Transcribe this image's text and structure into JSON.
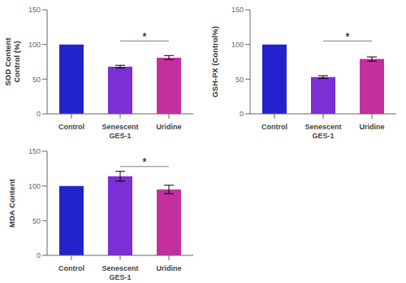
{
  "chart_data": [
    {
      "type": "bar",
      "ylabel": "SOD Content\nControl (%)",
      "categories": [
        "Control",
        "Senescent\nGES-1",
        "Uridine"
      ],
      "values": [
        100,
        68,
        81
      ],
      "errors": [
        0,
        2,
        3
      ],
      "colors": [
        "#2323CC",
        "#7B2FD4",
        "#C42FA0"
      ],
      "ylim": [
        0,
        150
      ],
      "yticks": [
        0,
        50,
        100,
        150
      ],
      "grid": false,
      "annotations": [
        {
          "text": "*",
          "between": [
            "Senescent\nGES-1",
            "Uridine"
          ],
          "y": 105,
          "text_y": 106
        }
      ]
    },
    {
      "type": "bar",
      "ylabel": "GSH-PX (Control%)",
      "categories": [
        "Control",
        "Senescent\nGES-1",
        "Uridine"
      ],
      "values": [
        100,
        53,
        79
      ],
      "errors": [
        0,
        2,
        3
      ],
      "colors": [
        "#2323CC",
        "#7B2FD4",
        "#C42FA0"
      ],
      "ylim": [
        0,
        150
      ],
      "yticks": [
        0,
        50,
        100,
        150
      ],
      "grid": false,
      "annotations": [
        {
          "text": "*",
          "between": [
            "Senescent\nGES-1",
            "Uridine"
          ],
          "y": 105,
          "text_y": 106
        }
      ]
    },
    {
      "type": "bar",
      "ylabel": "MDA Content",
      "categories": [
        "Control",
        "Senescent\nGES-1",
        "Uridine"
      ],
      "values": [
        100,
        114,
        95
      ],
      "errors": [
        0,
        7,
        6
      ],
      "colors": [
        "#2323CC",
        "#7B2FD4",
        "#C42FA0"
      ],
      "ylim": [
        0,
        150
      ],
      "yticks": [
        0,
        50,
        100,
        150
      ],
      "grid": false,
      "annotations": [
        {
          "text": "*",
          "between": [
            "Senescent\nGES-1",
            "Uridine"
          ],
          "y": 128,
          "text_y": 129
        }
      ]
    }
  ]
}
